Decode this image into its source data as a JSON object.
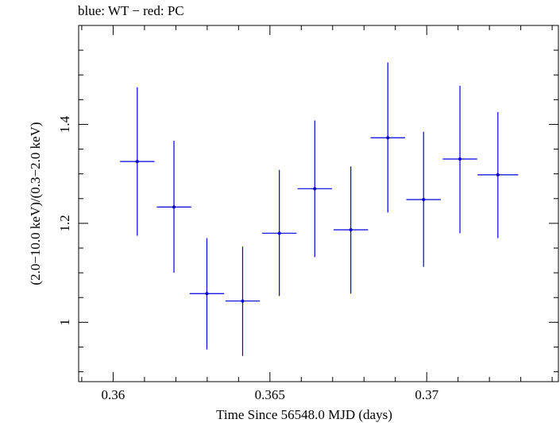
{
  "chart_data": {
    "type": "scatter",
    "title": "blue: WT − red: PC",
    "xlabel": "Time Since 56548.0 MJD (days)",
    "ylabel": "(2.0−10.0 keV)/(0.3−2.0 keV)",
    "xlim": [
      0.3589,
      0.3742
    ],
    "ylim": [
      0.88,
      1.6
    ],
    "xticks": [
      {
        "value": 0.36,
        "label": "0.36"
      },
      {
        "value": 0.365,
        "label": "0.365"
      },
      {
        "value": 0.37,
        "label": "0.37"
      }
    ],
    "yticks": [
      {
        "value": 1.0,
        "label": "1"
      },
      {
        "value": 1.2,
        "label": "1.2"
      },
      {
        "value": 1.4,
        "label": "1.4"
      }
    ],
    "grid": false,
    "series": [
      {
        "color": "#0000dd",
        "points": [
          {
            "x": 0.36077,
            "y": 1.325,
            "xerr": 0.00055,
            "ylo": 1.175,
            "yhi": 1.475
          },
          {
            "x": 0.36194,
            "y": 1.233,
            "xerr": 0.00055,
            "ylo": 1.1,
            "yhi": 1.367
          },
          {
            "x": 0.36299,
            "y": 1.058,
            "xerr": 0.00055,
            "ylo": 0.945,
            "yhi": 1.17
          },
          {
            "x": 0.36413,
            "y": 1.043,
            "xerr": 0.00055,
            "ylo": 0.932,
            "yhi": 1.153
          },
          {
            "x": 0.3653,
            "y": 1.18,
            "xerr": 0.00055,
            "ylo": 1.053,
            "yhi": 1.308
          },
          {
            "x": 0.36643,
            "y": 1.27,
            "xerr": 0.00055,
            "ylo": 1.132,
            "yhi": 1.408
          },
          {
            "x": 0.36758,
            "y": 1.187,
            "xerr": 0.00055,
            "ylo": 1.058,
            "yhi": 1.315
          },
          {
            "x": 0.36876,
            "y": 1.373,
            "xerr": 0.00055,
            "ylo": 1.222,
            "yhi": 1.525
          },
          {
            "x": 0.3699,
            "y": 1.248,
            "xerr": 0.00055,
            "ylo": 1.112,
            "yhi": 1.385
          },
          {
            "x": 0.37106,
            "y": 1.33,
            "xerr": 0.00055,
            "ylo": 1.18,
            "yhi": 1.478
          },
          {
            "x": 0.37227,
            "y": 1.298,
            "xerr": 0.00065,
            "ylo": 1.17,
            "yhi": 1.425
          }
        ]
      }
    ]
  }
}
